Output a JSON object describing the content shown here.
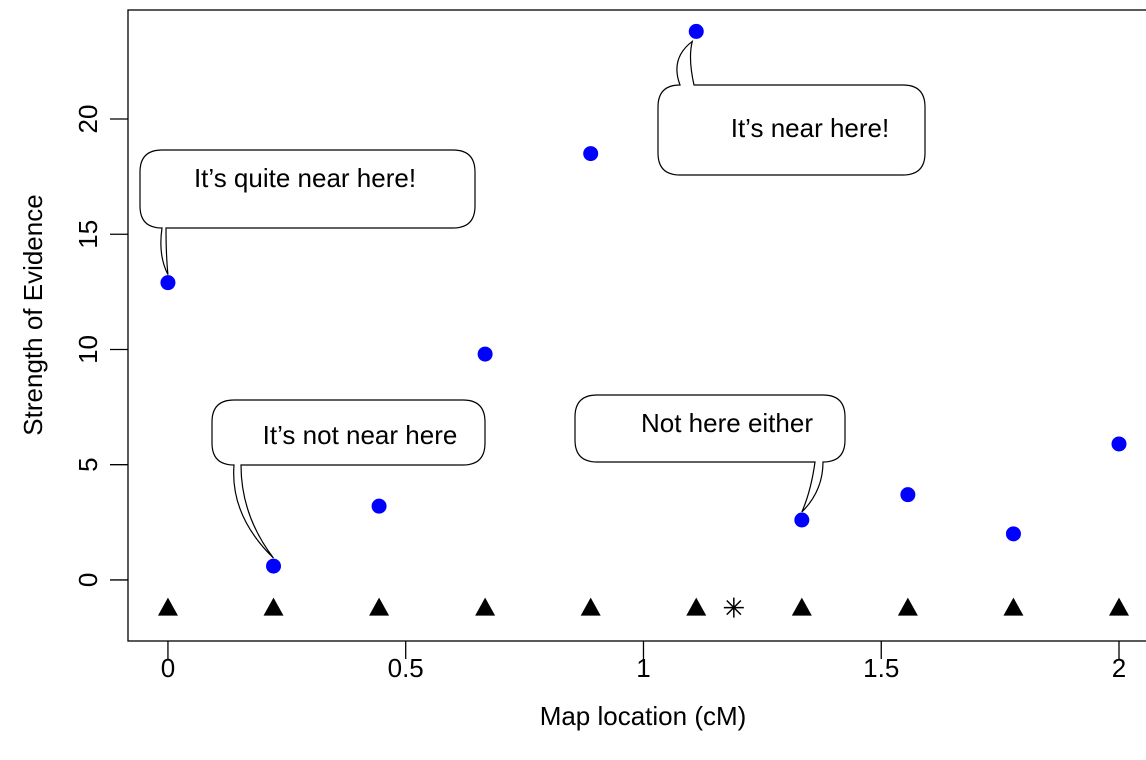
{
  "chart_data": {
    "type": "scatter",
    "x_label": "Map location (cM)",
    "y_label": "Strength of Evidence",
    "xlim": [
      -0.084,
      2.082
    ],
    "ylim": [
      -2.65,
      24.73
    ],
    "xticks": [
      0,
      0.5,
      1,
      1.5,
      2
    ],
    "yticks": [
      0,
      5,
      10,
      15,
      20
    ],
    "series": [
      {
        "color": "#0000ff",
        "marker": "circle",
        "x": [
          0,
          0.222,
          0.444,
          0.667,
          0.889,
          1.111,
          1.333,
          1.556,
          1.778,
          2.0
        ],
        "values": [
          12.9,
          0.6,
          3.2,
          9.8,
          18.5,
          23.8,
          2.6,
          3.7,
          2.0,
          5.9
        ]
      },
      {
        "color": "#000000",
        "marker": "triangle",
        "x": [
          0,
          0.222,
          0.444,
          0.667,
          0.889,
          1.111,
          1.333,
          1.556,
          1.778,
          2.0
        ],
        "values": [
          -1.2,
          -1.2,
          -1.2,
          -1.2,
          -1.2,
          -1.2,
          -1.2,
          -1.2,
          -1.2,
          -1.2
        ]
      },
      {
        "color": "#000000",
        "marker": "asterisk",
        "x": [
          1.19
        ],
        "values": [
          -1.2
        ]
      }
    ],
    "annotations": [
      "It’s quite near here!",
      "It’s near here!",
      "It’s not near here",
      "Not here either"
    ]
  }
}
